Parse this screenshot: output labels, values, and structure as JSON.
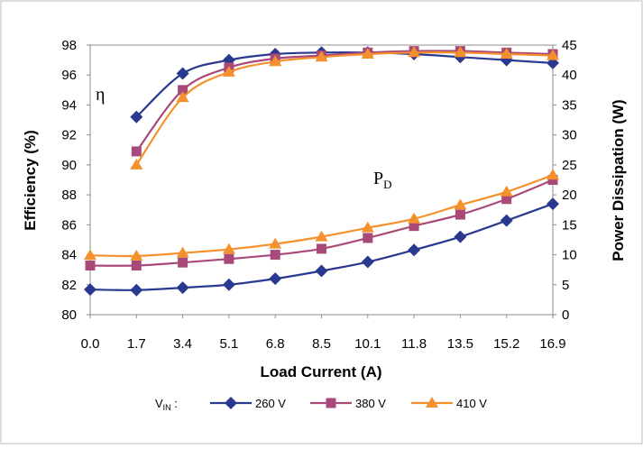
{
  "chart_data": {
    "type": "line",
    "x": [
      0.0,
      1.7,
      3.4,
      5.1,
      6.8,
      8.5,
      10.1,
      11.8,
      13.5,
      15.2,
      16.9
    ],
    "x_tick_labels": [
      "0.0",
      "1.7",
      "3.4",
      "5.1",
      "6.8",
      "8.5",
      "10.1",
      "11.8",
      "13.5",
      "15.2",
      "16.9"
    ],
    "xlabel": "Load Current (A)",
    "ylabel": "Efficiency (%)",
    "ylim": [
      80,
      98
    ],
    "y_ticks": [
      "80",
      "82",
      "84",
      "86",
      "88",
      "90",
      "92",
      "94",
      "96",
      "98"
    ],
    "y2label": "Power Dissipation (W)",
    "y2lim": [
      0,
      45
    ],
    "y2_ticks": [
      "0",
      "5",
      "10",
      "15",
      "20",
      "25",
      "30",
      "35",
      "40",
      "45"
    ],
    "grid": false,
    "legend_position": "bottom",
    "legend_prefix_main": "V",
    "legend_prefix_sub": "IN",
    "legend_prefix_suffix": " :",
    "annotations": {
      "efficiency": "η",
      "power_main": "P",
      "power_sub": "D"
    },
    "series": [
      {
        "name": "260 V",
        "color": "#2a3990",
        "marker": "diamond",
        "efficiency": [
          null,
          93.2,
          96.1,
          97.0,
          97.4,
          97.5,
          97.5,
          97.4,
          97.2,
          97.0,
          96.8
        ],
        "power_dissipation": [
          4.2,
          4.1,
          4.5,
          5.0,
          6.0,
          7.3,
          8.8,
          10.8,
          13.0,
          15.7,
          18.5
        ]
      },
      {
        "name": "380 V",
        "color": "#a8497a",
        "marker": "square",
        "efficiency": [
          null,
          90.9,
          95.0,
          96.5,
          97.1,
          97.3,
          97.5,
          97.6,
          97.6,
          97.5,
          97.4
        ],
        "power_dissipation": [
          8.2,
          8.2,
          8.7,
          9.3,
          10.0,
          11.0,
          12.8,
          14.8,
          16.7,
          19.3,
          22.5
        ]
      },
      {
        "name": "410 V",
        "color": "#f5912c",
        "marker": "triangle",
        "efficiency": [
          null,
          90.0,
          94.5,
          96.2,
          96.9,
          97.2,
          97.4,
          97.5,
          97.5,
          97.4,
          97.3
        ],
        "power_dissipation": [
          9.9,
          9.8,
          10.3,
          10.9,
          11.8,
          13.0,
          14.5,
          16.0,
          18.3,
          20.5,
          23.3
        ]
      }
    ]
  }
}
